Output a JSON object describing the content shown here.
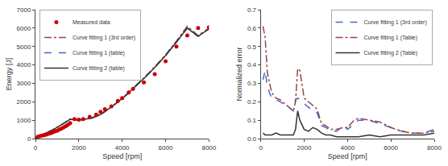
{
  "chart_data": [
    {
      "type": "line",
      "xlabel": "Speed [rpm]",
      "ylabel": "Energy [J]",
      "xlim": [
        0,
        8000
      ],
      "xticks": [
        0,
        2000,
        4000,
        6000,
        8000
      ],
      "ylim": [
        0,
        7000
      ],
      "yticks": [
        0,
        1000,
        2000,
        3000,
        4000,
        5000,
        6000,
        7000
      ],
      "grid": false,
      "legend": "upper left",
      "series": [
        {
          "name": "Measured data",
          "type": "scatter",
          "marker": "circle",
          "color": "#cc0000",
          "x": [
            100,
            200,
            300,
            400,
            500,
            600,
            700,
            800,
            900,
            1000,
            1100,
            1200,
            1300,
            1400,
            1500,
            1600,
            1800,
            2000,
            2200,
            2500,
            2800,
            3000,
            3200,
            3500,
            3800,
            4000,
            4300,
            4500,
            5000,
            5500,
            6000,
            6500,
            7000,
            7500,
            8000
          ],
          "values": [
            100,
            130,
            160,
            190,
            220,
            260,
            300,
            340,
            390,
            430,
            490,
            550,
            610,
            680,
            760,
            840,
            1060,
            1030,
            1060,
            1180,
            1300,
            1450,
            1600,
            1750,
            2050,
            2200,
            2500,
            2700,
            3050,
            3500,
            4200,
            5000,
            5600,
            6000,
            6050
          ]
        },
        {
          "name": "Curve fitting 1 (3rd order)",
          "type": "line",
          "line_style": "dashdot",
          "color": "#994444",
          "x": [
            0,
            100,
            200,
            300,
            400,
            500,
            600,
            700,
            800,
            900,
            1000,
            1100,
            1200,
            1300,
            1400,
            1500,
            1600,
            1700,
            1800,
            1900,
            2000,
            2200,
            2400,
            2600,
            2800,
            3000,
            3200,
            3500,
            3800,
            4000,
            4300,
            4500,
            5000,
            5500,
            6000,
            6500,
            7000,
            7500,
            8000
          ],
          "values": [
            0,
            80,
            150,
            200,
            250,
            300,
            355,
            415,
            475,
            540,
            605,
            675,
            750,
            825,
            905,
            990,
            1070,
            1050,
            1030,
            1020,
            1020,
            1040,
            1080,
            1140,
            1220,
            1330,
            1490,
            1720,
            2000,
            2200,
            2500,
            2750,
            3300,
            3900,
            4550,
            5300,
            6100,
            5600,
            6000
          ]
        },
        {
          "name": "Curve fitting 1 (table)",
          "type": "line",
          "line_style": "dash",
          "color": "#4466cc",
          "x": [
            0,
            100,
            200,
            300,
            400,
            500,
            600,
            700,
            800,
            900,
            1000,
            1100,
            1200,
            1300,
            1400,
            1500,
            1600,
            1700,
            1800,
            1900,
            2000,
            2200,
            2400,
            2600,
            2800,
            3000,
            3200,
            3500,
            3800,
            4000,
            4300,
            4500,
            5000,
            5500,
            6000,
            6500,
            7000,
            7500,
            8000
          ],
          "values": [
            0,
            80,
            150,
            200,
            250,
            300,
            355,
            415,
            475,
            540,
            605,
            675,
            750,
            825,
            905,
            990,
            1050,
            1040,
            1025,
            1010,
            1010,
            1035,
            1070,
            1120,
            1200,
            1310,
            1460,
            1700,
            1980,
            2180,
            2470,
            2720,
            3260,
            3860,
            4510,
            5240,
            6000,
            5550,
            5950
          ]
        },
        {
          "name": "Curve fitting 2 (table)",
          "type": "line",
          "line_style": "solid",
          "color": "#333333",
          "x": [
            0,
            100,
            200,
            300,
            400,
            500,
            600,
            700,
            800,
            900,
            1000,
            1100,
            1200,
            1300,
            1400,
            1500,
            1600,
            1700,
            1800,
            1900,
            2000,
            2200,
            2400,
            2600,
            2800,
            3000,
            3200,
            3500,
            3800,
            4000,
            4300,
            4500,
            5000,
            5500,
            6000,
            6500,
            7000,
            7500,
            8000
          ],
          "values": [
            0,
            80,
            150,
            200,
            250,
            300,
            355,
            415,
            475,
            540,
            605,
            675,
            750,
            825,
            905,
            990,
            1050,
            1040,
            1025,
            1010,
            1010,
            1035,
            1070,
            1120,
            1200,
            1310,
            1460,
            1700,
            1980,
            2180,
            2470,
            2720,
            3260,
            3860,
            4510,
            5240,
            6000,
            5550,
            5950
          ]
        }
      ]
    },
    {
      "type": "line",
      "xlabel": "Speed [rpm]",
      "ylabel": "Normalized error",
      "xlim": [
        0,
        8000
      ],
      "xticks": [
        0,
        2000,
        4000,
        6000,
        8000
      ],
      "ylim": [
        0.0,
        0.7
      ],
      "yticks": [
        {
          "value": 0.0,
          "label": "0.0"
        },
        0.1,
        0.2,
        0.3,
        0.4,
        0.5,
        0.6,
        0.7
      ],
      "grid": false,
      "legend": "upper right",
      "series": [
        {
          "name": "Curve fitting 1 (3rd order)",
          "type": "line",
          "line_style": "dash",
          "color": "#4466cc",
          "x": [
            100,
            200,
            300,
            500,
            700,
            900,
            1000,
            1100,
            1200,
            1300,
            1400,
            1500,
            1600,
            1700,
            1800,
            2000,
            2200,
            2400,
            2600,
            2800,
            3000,
            3200,
            3500,
            3800,
            4000,
            4300,
            4500,
            5000,
            5500,
            6000,
            6500,
            7000,
            7500,
            8000
          ],
          "values": [
            0.32,
            0.37,
            0.28,
            0.22,
            0.21,
            0.2,
            0.19,
            0.19,
            0.18,
            0.17,
            0.16,
            0.15,
            0.21,
            0.22,
            0.21,
            0.19,
            0.17,
            0.15,
            0.14,
            0.07,
            0.06,
            0.04,
            0.04,
            0.07,
            0.05,
            0.08,
            0.1,
            0.1,
            0.08,
            0.06,
            0.04,
            0.03,
            0.03,
            0.05
          ]
        },
        {
          "name": "Curve fitting 1 (Table)",
          "type": "line",
          "line_style": "dashdot",
          "color": "#994444",
          "x": [
            100,
            200,
            300,
            500,
            700,
            900,
            1000,
            1100,
            1200,
            1300,
            1400,
            1500,
            1600,
            1700,
            1800,
            2000,
            2200,
            2400,
            2600,
            2800,
            3000,
            3200,
            3500,
            3800,
            4000,
            4300,
            4500,
            5000,
            5500,
            6000,
            6500,
            7000,
            7500,
            8000
          ],
          "values": [
            0.61,
            0.55,
            0.36,
            0.25,
            0.22,
            0.21,
            0.2,
            0.19,
            0.18,
            0.17,
            0.16,
            0.15,
            0.2,
            0.38,
            0.37,
            0.22,
            0.2,
            0.18,
            0.16,
            0.08,
            0.07,
            0.05,
            0.05,
            0.06,
            0.06,
            0.1,
            0.11,
            0.1,
            0.09,
            0.06,
            0.04,
            0.03,
            0.03,
            0.04
          ]
        },
        {
          "name": "Curve fitting 2 (Table)",
          "type": "line",
          "line_style": "solid",
          "color": "#333333",
          "x": [
            100,
            200,
            300,
            500,
            700,
            900,
            1000,
            1100,
            1200,
            1300,
            1400,
            1500,
            1600,
            1700,
            1800,
            2000,
            2200,
            2400,
            2600,
            2800,
            3000,
            3200,
            3500,
            3800,
            4000,
            4300,
            4500,
            5000,
            5500,
            6000,
            6500,
            7000,
            7500,
            8000
          ],
          "values": [
            0.03,
            0.02,
            0.02,
            0.02,
            0.03,
            0.02,
            0.02,
            0.02,
            0.02,
            0.02,
            0.02,
            0.02,
            0.05,
            0.15,
            0.1,
            0.05,
            0.04,
            0.06,
            0.05,
            0.03,
            0.02,
            0.02,
            0.01,
            0.01,
            0.01,
            0.01,
            0.01,
            0.02,
            0.01,
            0.02,
            0.02,
            0.02,
            0.02,
            0.03
          ]
        }
      ]
    }
  ]
}
